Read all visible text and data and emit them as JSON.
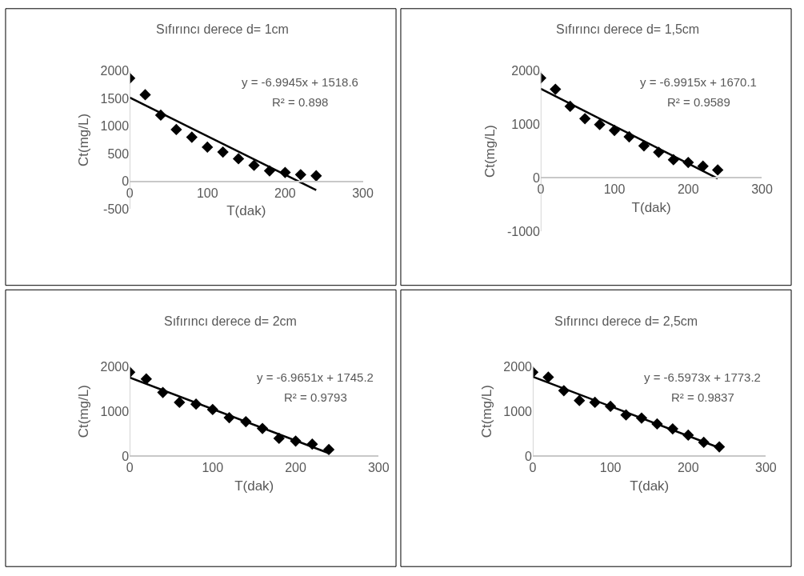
{
  "chart_data": [
    {
      "type": "scatter",
      "title": "Sıfırıncı derece d= 1cm",
      "xlabel": "T(dak)",
      "ylabel": "Ct(mg/L)",
      "xlim": [
        0,
        300
      ],
      "xticks": [
        0,
        100,
        200,
        300
      ],
      "ylim": [
        -500,
        2000
      ],
      "yticks": [
        -500,
        0,
        500,
        1000,
        1500,
        2000
      ],
      "annotations": [
        "y = -6.9945x + 1518.6",
        "R² = 0.898"
      ],
      "series": [
        {
          "color": "#000000",
          "marker": "diamond",
          "x": [
            0,
            20,
            40,
            60,
            80,
            100,
            120,
            140,
            160,
            180,
            200,
            220,
            240
          ],
          "values": [
            1870,
            1570,
            1200,
            940,
            800,
            620,
            530,
            410,
            290,
            190,
            160,
            120,
            100
          ]
        },
        {
          "type": "line",
          "color": "#000000",
          "line_style": "solid",
          "x": [
            0,
            240
          ],
          "values": [
            1520,
            -160
          ]
        }
      ]
    },
    {
      "type": "scatter",
      "title": "Sıfırıncı derece d= 1,5cm",
      "xlabel": "T(dak)",
      "ylabel": "Ct(mg/L)",
      "xlim": [
        0,
        300
      ],
      "xticks": [
        0,
        100,
        200,
        300
      ],
      "ylim": [
        -1000,
        2000
      ],
      "yticks": [
        -1000,
        0,
        1000,
        2000
      ],
      "annotations": [
        "y = -6.9915x + 1670.1",
        "R² = 0.9589"
      ],
      "series": [
        {
          "color": "#000000",
          "marker": "diamond",
          "x": [
            0,
            20,
            40,
            60,
            80,
            100,
            120,
            140,
            160,
            180,
            200,
            220,
            240
          ],
          "values": [
            1870,
            1660,
            1340,
            1110,
            1000,
            890,
            770,
            600,
            480,
            340,
            290,
            220,
            150
          ]
        },
        {
          "type": "line",
          "color": "#000000",
          "line_style": "solid",
          "x": [
            0,
            240
          ],
          "values": [
            1670,
            -10
          ]
        }
      ]
    },
    {
      "type": "scatter",
      "title": "Sıfırıncı derece d= 2cm",
      "xlabel": "T(dak)",
      "ylabel": "Ct(mg/L)",
      "xlim": [
        0,
        300
      ],
      "xticks": [
        0,
        100,
        200,
        300
      ],
      "ylim": [
        0,
        2000
      ],
      "yticks": [
        0,
        1000,
        2000
      ],
      "annotations": [
        "y = -6.9651x + 1745.2",
        "R² = 0.9793"
      ],
      "series": [
        {
          "color": "#000000",
          "marker": "diamond",
          "x": [
            0,
            20,
            40,
            60,
            80,
            100,
            120,
            140,
            160,
            180,
            200,
            220,
            240
          ],
          "values": [
            1870,
            1720,
            1420,
            1200,
            1160,
            1040,
            860,
            770,
            620,
            400,
            340,
            270,
            150
          ]
        },
        {
          "type": "line",
          "color": "#000000",
          "line_style": "solid",
          "x": [
            0,
            240
          ],
          "values": [
            1750,
            70
          ]
        }
      ]
    },
    {
      "type": "scatter",
      "title": "Sıfırıncı derece d= 2,5cm",
      "xlabel": "T(dak)",
      "ylabel": "Ct(mg/L)",
      "xlim": [
        0,
        300
      ],
      "xticks": [
        0,
        100,
        200,
        300
      ],
      "ylim": [
        0,
        2000
      ],
      "yticks": [
        0,
        1000,
        2000
      ],
      "annotations": [
        "y = -6.5973x + 1773.2",
        "R² = 0.9837"
      ],
      "series": [
        {
          "color": "#000000",
          "marker": "diamond",
          "x": [
            0,
            20,
            40,
            60,
            80,
            100,
            120,
            140,
            160,
            180,
            200,
            220,
            240
          ],
          "values": [
            1870,
            1760,
            1460,
            1240,
            1200,
            1110,
            920,
            850,
            720,
            610,
            470,
            310,
            210
          ]
        },
        {
          "type": "line",
          "color": "#000000",
          "line_style": "solid",
          "x": [
            0,
            240
          ],
          "values": [
            1770,
            190
          ]
        }
      ]
    }
  ]
}
